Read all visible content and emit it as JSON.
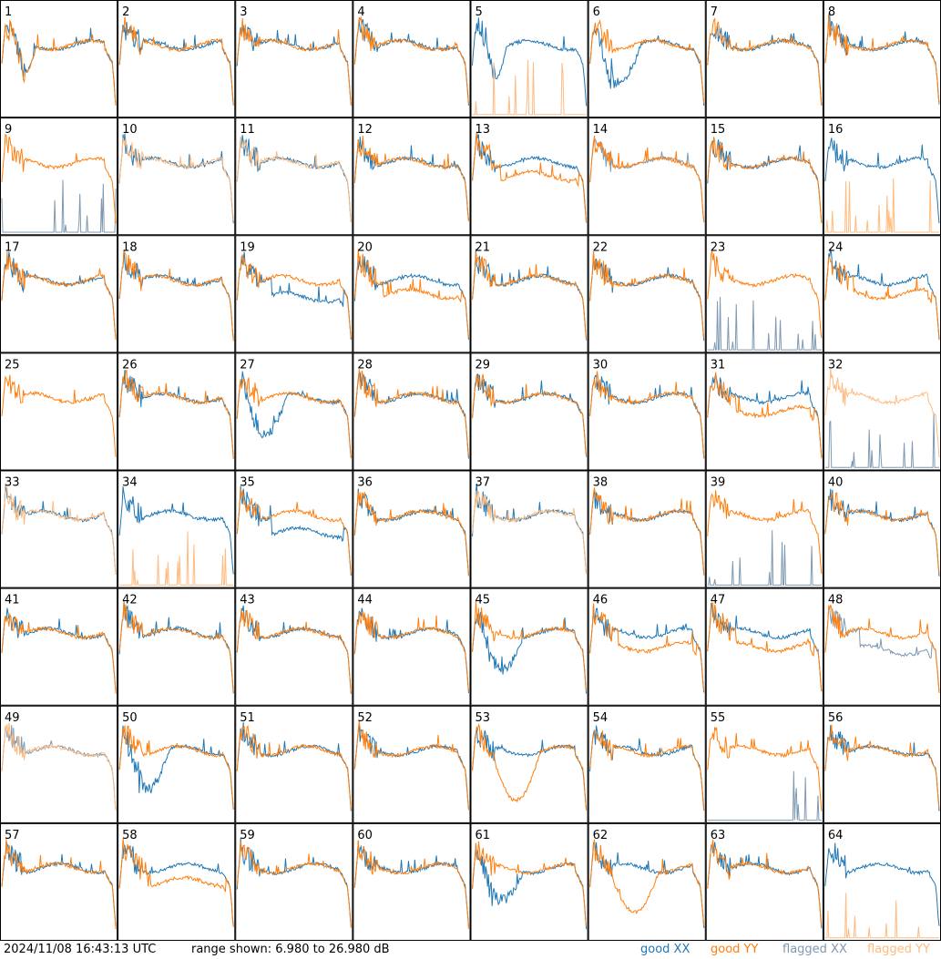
{
  "chart_data": {
    "type": "line",
    "grid": {
      "rows": 8,
      "cols": 8
    },
    "range_db": [
      6.98,
      26.98
    ],
    "colors": {
      "good_xx": "#1f77b4",
      "good_yy": "#ff7f0e",
      "flagged_xx": "#7f99b2",
      "flagged_yy": "#ffbb80"
    },
    "panels": [
      {
        "label": "1",
        "xx": "good",
        "yy": "good",
        "profile": "dipbig"
      },
      {
        "label": "2",
        "xx": "good",
        "yy": "good",
        "profile": "normal"
      },
      {
        "label": "3",
        "xx": "good",
        "yy": "good",
        "profile": "normal"
      },
      {
        "label": "4",
        "xx": "good",
        "yy": "good",
        "profile": "normal"
      },
      {
        "label": "5",
        "xx": "good",
        "yy": "spike",
        "profile": "dipbig"
      },
      {
        "label": "6",
        "xx": "good",
        "yy": "good",
        "profile": "xxdip"
      },
      {
        "label": "7",
        "xx": "good",
        "yy": "good",
        "profile": "normal"
      },
      {
        "label": "8",
        "xx": "good",
        "yy": "good",
        "profile": "normal"
      },
      {
        "label": "9",
        "xx": "spike",
        "yy": "good",
        "profile": "normal"
      },
      {
        "label": "10",
        "xx": "good",
        "yy": "flagged",
        "profile": "normal"
      },
      {
        "label": "11",
        "xx": "good",
        "yy": "flagged",
        "profile": "normal"
      },
      {
        "label": "12",
        "xx": "good",
        "yy": "good",
        "profile": "normal"
      },
      {
        "label": "13",
        "xx": "good",
        "yy": "good",
        "profile": "yylow"
      },
      {
        "label": "14",
        "xx": "flagged",
        "yy": "good",
        "profile": "normal"
      },
      {
        "label": "15",
        "xx": "good",
        "yy": "good",
        "profile": "normal"
      },
      {
        "label": "16",
        "xx": "good",
        "yy": "spike",
        "profile": "normal"
      },
      {
        "label": "17",
        "xx": "good",
        "yy": "good",
        "profile": "normal"
      },
      {
        "label": "18",
        "xx": "good",
        "yy": "good",
        "profile": "normal"
      },
      {
        "label": "19",
        "xx": "good",
        "yy": "good",
        "profile": "xxlow"
      },
      {
        "label": "20",
        "xx": "good",
        "yy": "good",
        "profile": "yylow"
      },
      {
        "label": "21",
        "xx": "good",
        "yy": "good",
        "profile": "normal"
      },
      {
        "label": "22",
        "xx": "good",
        "yy": "good",
        "profile": "normal"
      },
      {
        "label": "23",
        "xx": "spike",
        "yy": "good",
        "profile": "normal"
      },
      {
        "label": "24",
        "xx": "good",
        "yy": "good",
        "profile": "yylow"
      },
      {
        "label": "25",
        "xx": "none",
        "yy": "good",
        "profile": "normal"
      },
      {
        "label": "26",
        "xx": "good",
        "yy": "good",
        "profile": "normal"
      },
      {
        "label": "27",
        "xx": "good",
        "yy": "good",
        "profile": "xxdip"
      },
      {
        "label": "28",
        "xx": "good",
        "yy": "good",
        "profile": "normal"
      },
      {
        "label": "29",
        "xx": "good",
        "yy": "good",
        "profile": "normal"
      },
      {
        "label": "30",
        "xx": "good",
        "yy": "good",
        "profile": "normal"
      },
      {
        "label": "31",
        "xx": "good",
        "yy": "good",
        "profile": "yylow"
      },
      {
        "label": "32",
        "xx": "spike",
        "yy": "flagged",
        "profile": "normal"
      },
      {
        "label": "33",
        "xx": "good",
        "yy": "flagged",
        "profile": "normal"
      },
      {
        "label": "34",
        "xx": "good",
        "yy": "spike",
        "profile": "normal"
      },
      {
        "label": "35",
        "xx": "good",
        "yy": "good",
        "profile": "xxlow"
      },
      {
        "label": "36",
        "xx": "good",
        "yy": "good",
        "profile": "normal"
      },
      {
        "label": "37",
        "xx": "good",
        "yy": "flagged",
        "profile": "normal"
      },
      {
        "label": "38",
        "xx": "good",
        "yy": "good",
        "profile": "normal"
      },
      {
        "label": "39",
        "xx": "spike",
        "yy": "good",
        "profile": "normal"
      },
      {
        "label": "40",
        "xx": "good",
        "yy": "good",
        "profile": "normal"
      },
      {
        "label": "41",
        "xx": "good",
        "yy": "good",
        "profile": "normal"
      },
      {
        "label": "42",
        "xx": "good",
        "yy": "good",
        "profile": "normal"
      },
      {
        "label": "43",
        "xx": "good",
        "yy": "good",
        "profile": "normal"
      },
      {
        "label": "44",
        "xx": "good",
        "yy": "good",
        "profile": "normal"
      },
      {
        "label": "45",
        "xx": "good",
        "yy": "good",
        "profile": "xxdip"
      },
      {
        "label": "46",
        "xx": "good",
        "yy": "good",
        "profile": "yylow"
      },
      {
        "label": "47",
        "xx": "good",
        "yy": "good",
        "profile": "yylow"
      },
      {
        "label": "48",
        "xx": "flagged",
        "yy": "good",
        "profile": "xxlow"
      },
      {
        "label": "49",
        "xx": "flagged",
        "yy": "flagged",
        "profile": "normal"
      },
      {
        "label": "50",
        "xx": "good",
        "yy": "good",
        "profile": "xxdip"
      },
      {
        "label": "51",
        "xx": "good",
        "yy": "good",
        "profile": "normal"
      },
      {
        "label": "52",
        "xx": "good",
        "yy": "good",
        "profile": "normal"
      },
      {
        "label": "53",
        "xx": "good",
        "yy": "good",
        "profile": "yydip"
      },
      {
        "label": "54",
        "xx": "good",
        "yy": "good",
        "profile": "normal"
      },
      {
        "label": "55",
        "xx": "spike",
        "yy": "good",
        "profile": "normal"
      },
      {
        "label": "56",
        "xx": "good",
        "yy": "good",
        "profile": "normal"
      },
      {
        "label": "57",
        "xx": "good",
        "yy": "good",
        "profile": "normal"
      },
      {
        "label": "58",
        "xx": "good",
        "yy": "good",
        "profile": "yylow"
      },
      {
        "label": "59",
        "xx": "good",
        "yy": "good",
        "profile": "normal"
      },
      {
        "label": "60",
        "xx": "good",
        "yy": "good",
        "profile": "normal"
      },
      {
        "label": "61",
        "xx": "good",
        "yy": "good",
        "profile": "xxdip"
      },
      {
        "label": "62",
        "xx": "good",
        "yy": "good",
        "profile": "yydip"
      },
      {
        "label": "63",
        "xx": "good",
        "yy": "good",
        "profile": "normal"
      },
      {
        "label": "64",
        "xx": "good",
        "yy": "spike",
        "profile": "normal"
      }
    ]
  },
  "footer": {
    "timestamp": "2024/11/08 16:43:13 UTC",
    "range": "range shown: 6.980 to 26.980 dB"
  },
  "legend": {
    "good_xx": "good XX",
    "good_yy": "good YY",
    "flagged_xx": "flagged XX",
    "flagged_yy": "flagged YY"
  }
}
